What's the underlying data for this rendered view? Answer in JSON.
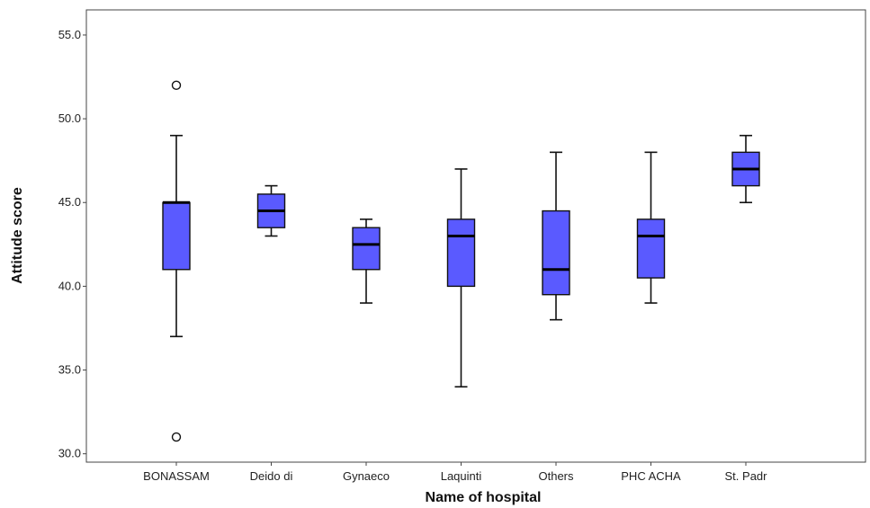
{
  "chart_data": {
    "type": "boxplot",
    "title": "",
    "xlabel": "Name of hospital",
    "ylabel": "Attitude score",
    "ylim": [
      29.5,
      56.5
    ],
    "yticks": [
      "30.0",
      "35.0",
      "40.0",
      "45.0",
      "50.0",
      "55.0"
    ],
    "grid": false,
    "box_color": "#5a5aff",
    "categories": [
      "BONASSAM",
      "Deido di",
      "Gynaeco",
      "Laquinti",
      "Others",
      "PHC ACHA",
      "St. Padr"
    ],
    "boxes": [
      {
        "category": "BONASSAM",
        "whisker_low": 37,
        "q1": 41,
        "median": 45,
        "q3": 45,
        "whisker_high": 49,
        "outliers": [
          52,
          31
        ]
      },
      {
        "category": "Deido di",
        "whisker_low": 43,
        "q1": 43.5,
        "median": 44.5,
        "q3": 45.5,
        "whisker_high": 46,
        "outliers": []
      },
      {
        "category": "Gynaeco",
        "whisker_low": 39,
        "q1": 41,
        "median": 42.5,
        "q3": 43.5,
        "whisker_high": 44,
        "outliers": []
      },
      {
        "category": "Laquinti",
        "whisker_low": 34,
        "q1": 40,
        "median": 43,
        "q3": 44,
        "whisker_high": 47,
        "outliers": []
      },
      {
        "category": "Others",
        "whisker_low": 38,
        "q1": 39.5,
        "median": 41,
        "q3": 44.5,
        "whisker_high": 48,
        "outliers": []
      },
      {
        "category": "PHC ACHA",
        "whisker_low": 39,
        "q1": 40.5,
        "median": 43,
        "q3": 44,
        "whisker_high": 48,
        "outliers": []
      },
      {
        "category": "St. Padr",
        "whisker_low": 45,
        "q1": 46,
        "median": 47,
        "q3": 48,
        "whisker_high": 49,
        "outliers": []
      }
    ]
  }
}
